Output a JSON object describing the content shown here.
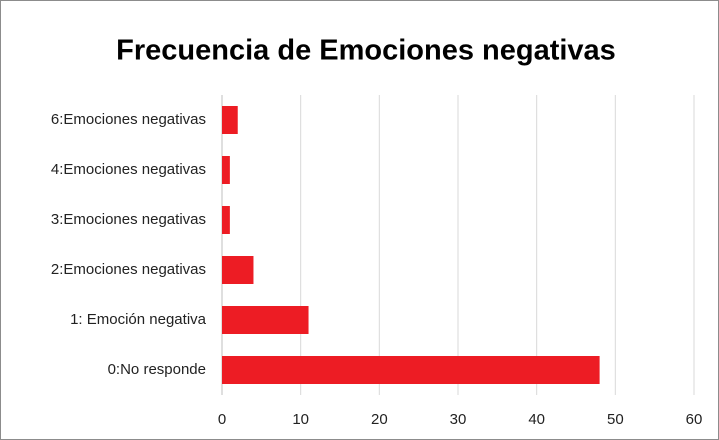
{
  "chart_data": {
    "type": "bar",
    "orientation": "horizontal",
    "title": "Frecuencia de Emociones negativas",
    "categories": [
      "0:No responde",
      "1: Emoción negativa",
      "2:Emociones negativas",
      "3:Emociones negativas",
      "4:Emociones negativas",
      "6:Emociones negativas"
    ],
    "values": [
      48,
      11,
      4,
      1,
      1,
      2
    ],
    "color": "#ed1c24",
    "xlim": [
      0,
      60
    ],
    "xticks": [
      0,
      10,
      20,
      30,
      40,
      50,
      60
    ],
    "grid": true
  }
}
